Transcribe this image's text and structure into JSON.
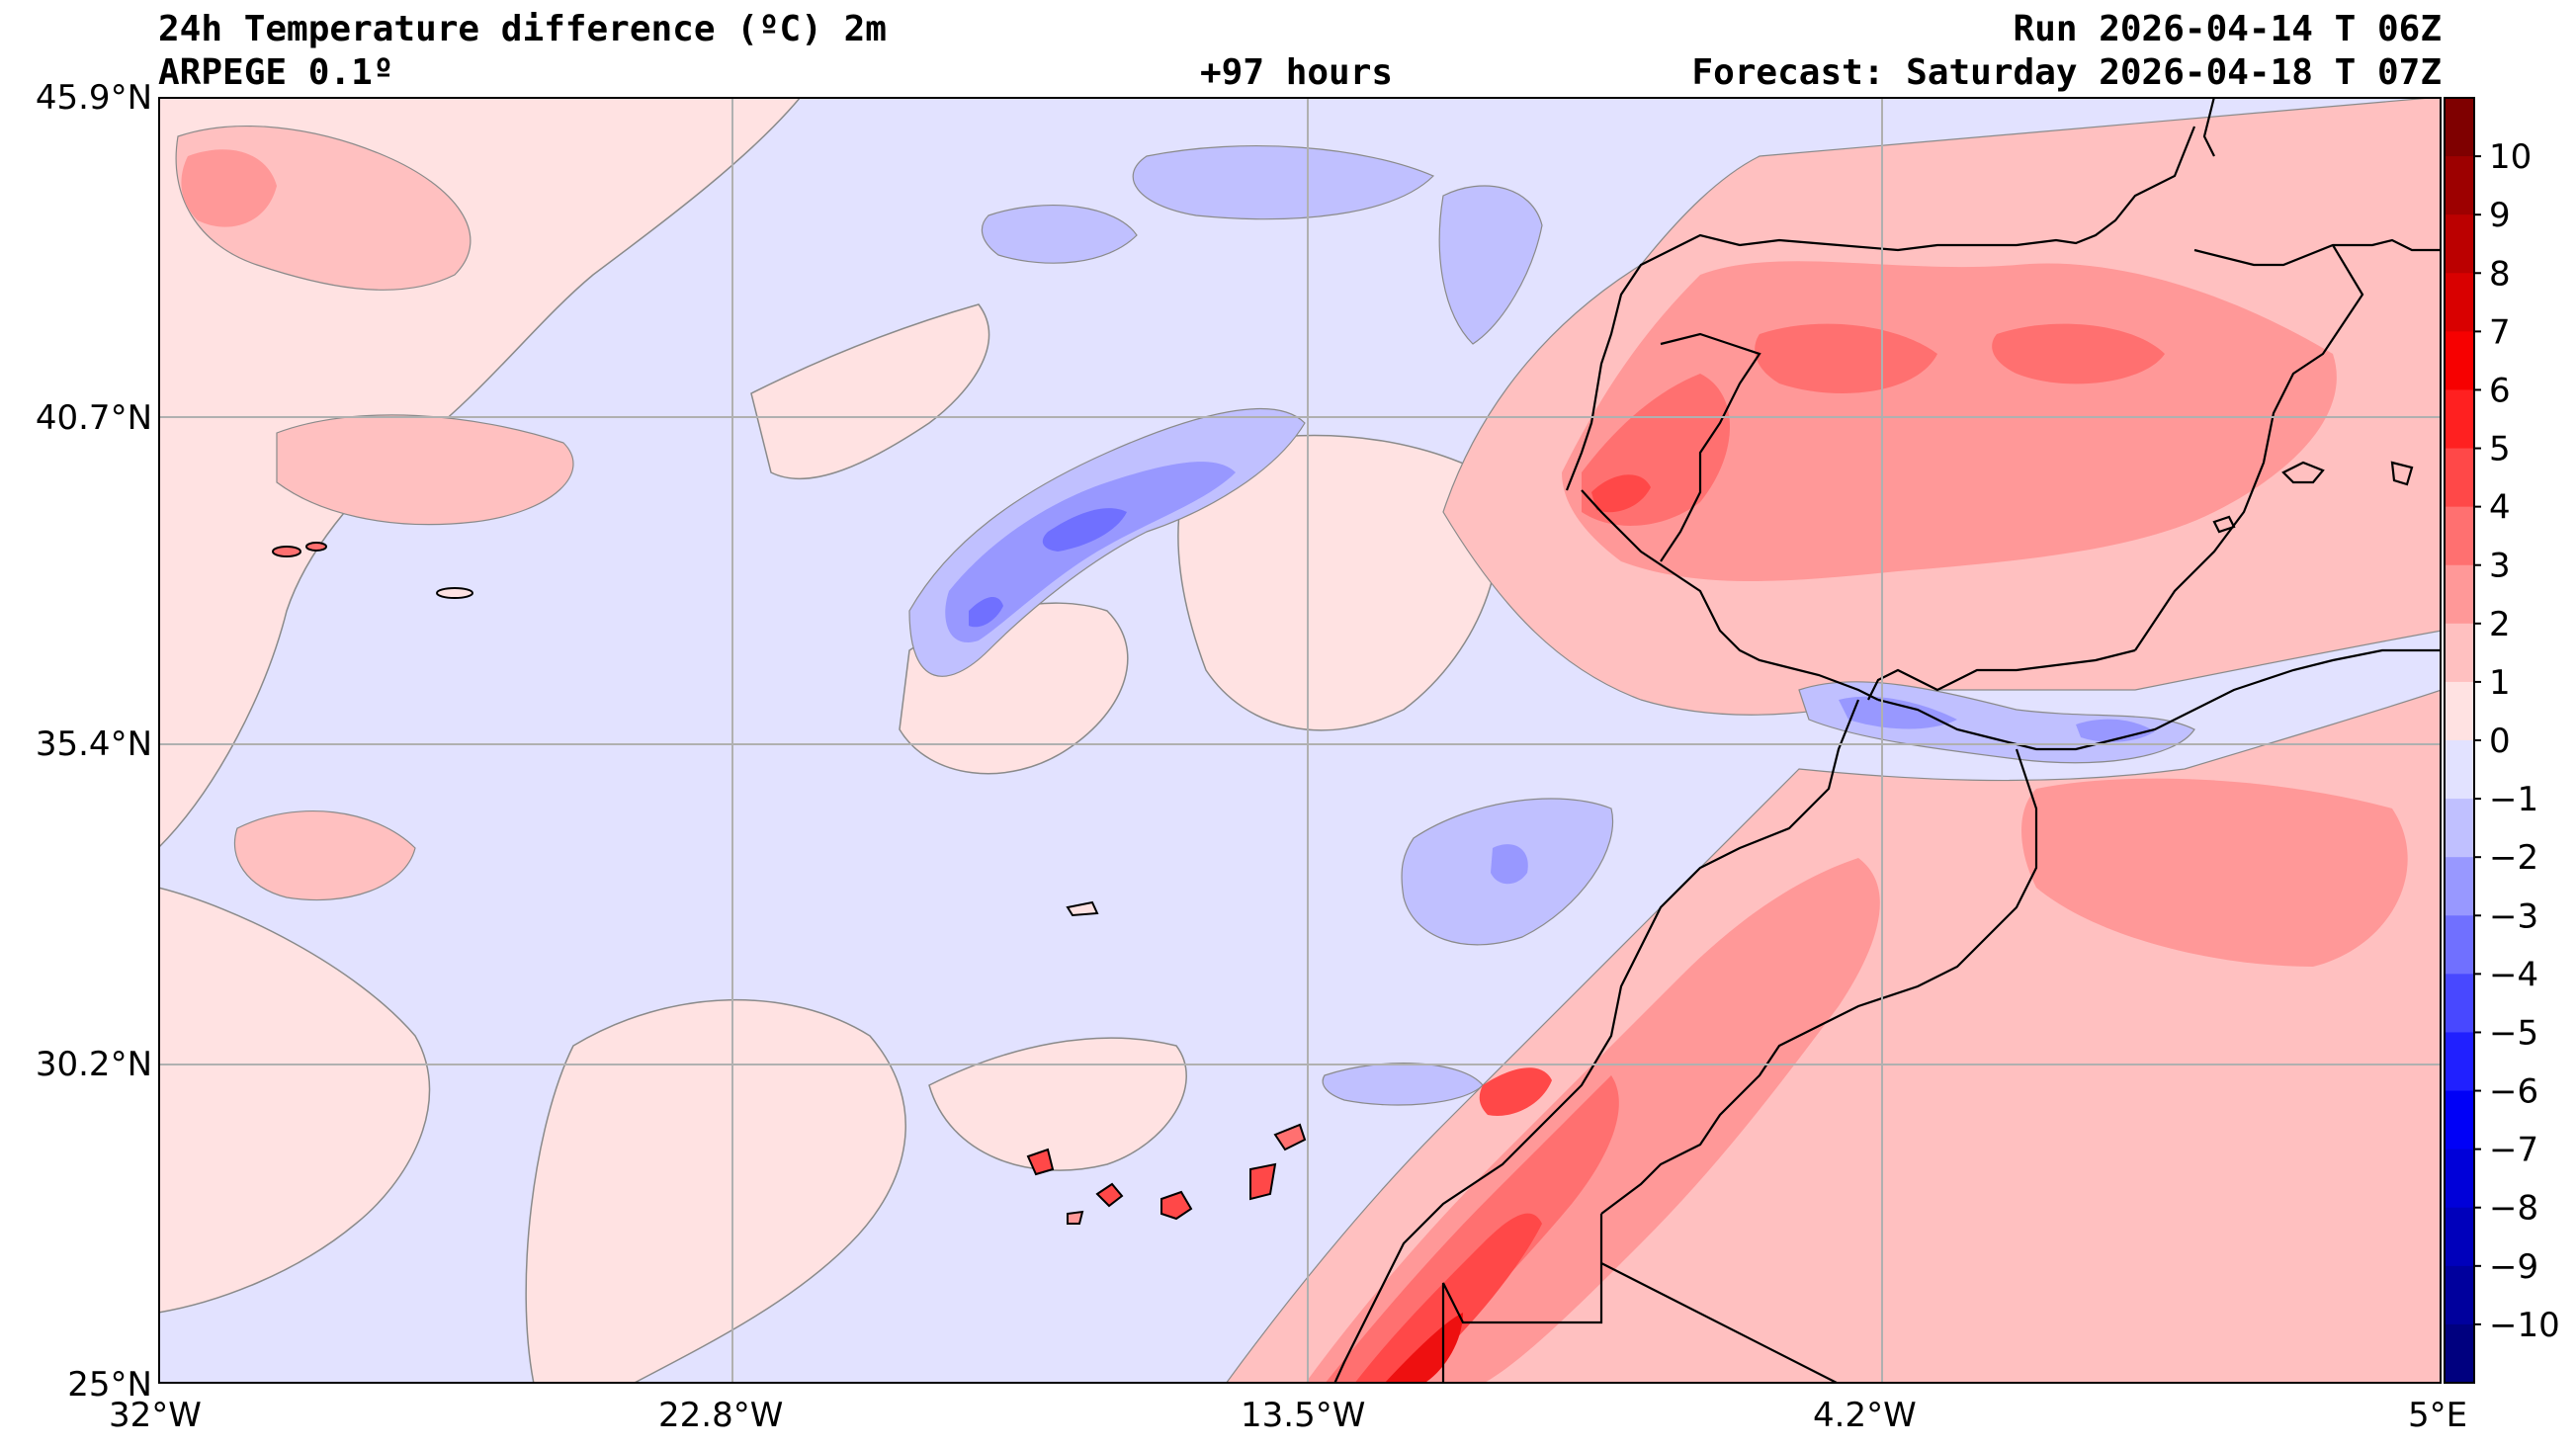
{
  "title": {
    "variable": "24h Temperature difference (ºC) 2m",
    "model": "ARPEGE 0.1º",
    "lead": "+97 hours",
    "run": "Run 2026-04-14 T 06Z",
    "forecast": "Forecast: Saturday 2026-04-18 T 07Z"
  },
  "map": {
    "lat_labels": [
      "45.9°N",
      "40.7°N",
      "35.4°N",
      "30.2°N",
      "25°N"
    ],
    "lon_labels": [
      "32°W",
      "22.8°W",
      "13.5°W",
      "4.2°W",
      "5°E"
    ],
    "lat_range": [
      25,
      45.9
    ],
    "lon_range": [
      -32,
      5
    ]
  },
  "colorbar": {
    "ticks": [
      "10",
      "9",
      "8",
      "7",
      "6",
      "5",
      "4",
      "3",
      "2",
      "1",
      "0",
      "−1",
      "−2",
      "−3",
      "−4",
      "−5",
      "−6",
      "−7",
      "−8",
      "−9",
      "−10"
    ],
    "colors": [
      "#7f0000",
      "#9d0000",
      "#bb0000",
      "#d90000",
      "#f70000",
      "#ff2020",
      "#ff4848",
      "#ff7070",
      "#ff9898",
      "#ffc0c0",
      "#ffe2e2",
      "#e2e2ff",
      "#c0c0ff",
      "#9898ff",
      "#7070ff",
      "#4848ff",
      "#2020ff",
      "#0000f7",
      "#0000d9",
      "#0000bb",
      "#00009d",
      "#00007f"
    ]
  },
  "colors": {
    "neutral_pos": "#ffe2e2",
    "neutral_neg": "#e2e2ff",
    "warm1": "#ffc0c0",
    "warm2": "#ff9898",
    "warm3": "#ff7070",
    "warm4": "#ff4848",
    "warm5": "#ee1010",
    "cold1": "#c0c0ff",
    "cold2": "#9898ff",
    "cold3": "#7070ff",
    "cold4": "#4848ff"
  }
}
